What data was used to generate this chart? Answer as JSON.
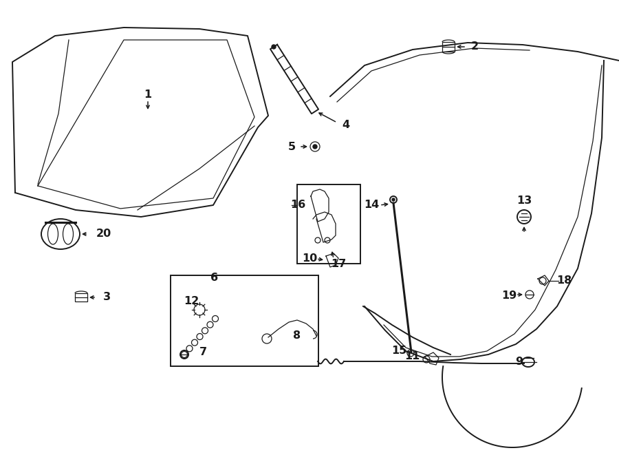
{
  "bg_color": "#ffffff",
  "lc": "#1a1a1a",
  "lw": 1.4,
  "lw_thin": 0.9,
  "label_fs": 11.5
}
